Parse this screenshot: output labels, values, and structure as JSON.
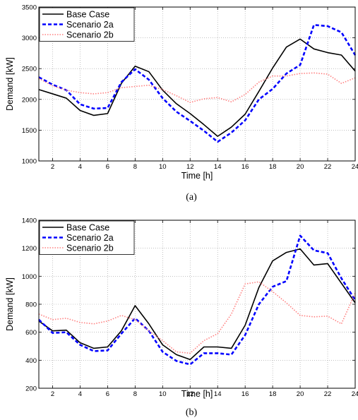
{
  "chart_data": [
    {
      "type": "line",
      "caption": "(a)",
      "xlabel": "Time [h]",
      "ylabel": "Demand [kW]",
      "xlim": [
        1,
        24
      ],
      "ylim": [
        1000,
        3500
      ],
      "xticks": [
        2,
        4,
        6,
        8,
        10,
        12,
        14,
        16,
        18,
        20,
        22,
        24
      ],
      "yticks": [
        1000,
        1500,
        2000,
        2500,
        3000,
        3500
      ],
      "grid": true,
      "legend_position": "top-left",
      "x": [
        1,
        2,
        3,
        4,
        5,
        6,
        7,
        8,
        9,
        10,
        11,
        12,
        13,
        14,
        15,
        16,
        17,
        18,
        19,
        20,
        21,
        22,
        23,
        24
      ],
      "series": [
        {
          "name": "Base Case",
          "color": "#000000",
          "style": "solid",
          "values": [
            2160,
            2090,
            2020,
            1820,
            1740,
            1770,
            2260,
            2540,
            2450,
            2150,
            1930,
            1770,
            1590,
            1400,
            1550,
            1760,
            2130,
            2510,
            2850,
            2980,
            2820,
            2760,
            2720,
            2460
          ]
        },
        {
          "name": "Scenario 2a",
          "color": "#0000ff",
          "style": "dashed",
          "values": [
            2360,
            2240,
            2150,
            1920,
            1850,
            1860,
            2280,
            2490,
            2320,
            2020,
            1800,
            1650,
            1490,
            1310,
            1460,
            1660,
            2000,
            2170,
            2420,
            2560,
            3210,
            3190,
            3090,
            2720
          ]
        },
        {
          "name": "Scenario 2b",
          "color": "#ff8080",
          "style": "dotted",
          "values": [
            2340,
            2220,
            2150,
            2110,
            2090,
            2110,
            2190,
            2210,
            2230,
            2160,
            2060,
            1950,
            2010,
            2030,
            1960,
            2080,
            2280,
            2380,
            2380,
            2420,
            2430,
            2410,
            2260,
            2350
          ]
        }
      ]
    },
    {
      "type": "line",
      "caption": "(b)",
      "xlabel": "Time [h]",
      "ylabel": "Demand [kW]",
      "xlim": [
        1,
        24
      ],
      "ylim": [
        200,
        1400
      ],
      "xticks": [
        2,
        4,
        6,
        8,
        10,
        12,
        14,
        16,
        18,
        20,
        22,
        24
      ],
      "yticks": [
        200,
        400,
        600,
        800,
        1000,
        1200,
        1400
      ],
      "grid": true,
      "legend_position": "top-left",
      "x": [
        1,
        2,
        3,
        4,
        5,
        6,
        7,
        8,
        9,
        10,
        11,
        12,
        13,
        14,
        15,
        16,
        17,
        18,
        19,
        20,
        21,
        22,
        23,
        24
      ],
      "series": [
        {
          "name": "Base Case",
          "color": "#000000",
          "style": "solid",
          "values": [
            680,
            610,
            615,
            525,
            485,
            495,
            610,
            790,
            660,
            510,
            440,
            405,
            495,
            495,
            485,
            650,
            920,
            1110,
            1170,
            1195,
            1080,
            1090,
            950,
            810
          ]
        },
        {
          "name": "Scenario 2a",
          "color": "#0000ff",
          "style": "dashed",
          "values": [
            690,
            595,
            600,
            510,
            465,
            470,
            590,
            700,
            610,
            460,
            395,
            370,
            450,
            450,
            440,
            580,
            800,
            925,
            965,
            1290,
            1185,
            1165,
            985,
            830
          ]
        },
        {
          "name": "Scenario 2b",
          "color": "#ff8080",
          "style": "dotted",
          "values": [
            730,
            690,
            700,
            670,
            660,
            680,
            720,
            690,
            610,
            540,
            460,
            450,
            540,
            590,
            730,
            945,
            960,
            890,
            810,
            720,
            710,
            715,
            660,
            880
          ]
        }
      ]
    }
  ]
}
